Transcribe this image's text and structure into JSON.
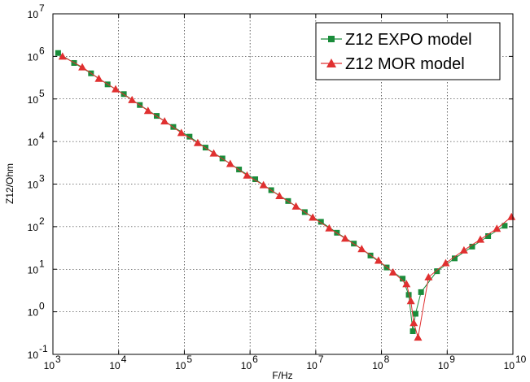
{
  "chart_data": {
    "type": "line",
    "xscale": "log",
    "yscale": "log",
    "xlabel": "F/Hz",
    "ylabel": "Z12/Ohm",
    "xlim": [
      1000,
      10000000000
    ],
    "ylim": [
      0.1,
      10000000
    ],
    "grid": true,
    "legend_position": "top-right",
    "x_ticks": [
      {
        "value": 1000,
        "base": "10",
        "exp": "3"
      },
      {
        "value": 10000,
        "base": "10",
        "exp": "4"
      },
      {
        "value": 100000,
        "base": "10",
        "exp": "5"
      },
      {
        "value": 1000000,
        "base": "10",
        "exp": "6"
      },
      {
        "value": 10000000,
        "base": "10",
        "exp": "7"
      },
      {
        "value": 100000000,
        "base": "10",
        "exp": "8"
      },
      {
        "value": 1000000000,
        "base": "10",
        "exp": "9"
      },
      {
        "value": 10000000000,
        "base": "10",
        "exp": "10"
      }
    ],
    "y_ticks": [
      {
        "value": 0.1,
        "base": "10",
        "exp": "-1"
      },
      {
        "value": 1,
        "base": "10",
        "exp": "0"
      },
      {
        "value": 10,
        "base": "10",
        "exp": "1"
      },
      {
        "value": 100,
        "base": "10",
        "exp": "2"
      },
      {
        "value": 1000,
        "base": "10",
        "exp": "3"
      },
      {
        "value": 10000,
        "base": "10",
        "exp": "4"
      },
      {
        "value": 100000,
        "base": "10",
        "exp": "5"
      },
      {
        "value": 1000000,
        "base": "10",
        "exp": "6"
      },
      {
        "value": 10000000,
        "base": "10",
        "exp": "7"
      }
    ],
    "series": [
      {
        "name": "Z12 EXPO model",
        "color": "#1a8c3a",
        "marker": "square",
        "x": [
          1200,
          2100,
          3800,
          6800,
          12000,
          21000,
          38000,
          68000,
          120000,
          210000,
          380000,
          680000,
          1200000,
          2100000,
          3800000,
          6800000,
          12000000,
          21000000,
          38000000,
          68000000,
          120000000,
          210000000,
          260000000,
          300000000,
          330000000,
          400000000,
          700000000,
          1300000000,
          2400000000,
          4200000000,
          7500000000
        ],
        "y": [
          1200000,
          700000,
          400000,
          220000,
          130000,
          72000,
          40000,
          22000,
          13000,
          7200,
          4000,
          2200,
          1300,
          720,
          400,
          220,
          130,
          72,
          40,
          21,
          11,
          6,
          2.5,
          0.35,
          0.9,
          2.9,
          9,
          18,
          34,
          60,
          105
        ]
      },
      {
        "name": "Z12 MOR model",
        "color": "#e03030",
        "marker": "triangle",
        "x": [
          1400,
          2800,
          5000,
          9000,
          16000,
          28000,
          50000,
          90000,
          160000,
          280000,
          500000,
          900000,
          1600000,
          2800000,
          5000000,
          9000000,
          16000000,
          28000000,
          50000000,
          90000000,
          150000000,
          240000000,
          280000000,
          310000000,
          360000000,
          520000000,
          950000000,
          1800000000,
          3200000000,
          5700000000,
          9500000000
        ],
        "y": [
          1000000,
          560000,
          300000,
          170000,
          95000,
          53000,
          30000,
          16000,
          9300,
          5300,
          3000,
          1600,
          950,
          530,
          300,
          165,
          92,
          53,
          30,
          16,
          8.5,
          4.5,
          1.8,
          0.55,
          0.25,
          6.5,
          14,
          28,
          50,
          90,
          170
        ]
      }
    ]
  }
}
